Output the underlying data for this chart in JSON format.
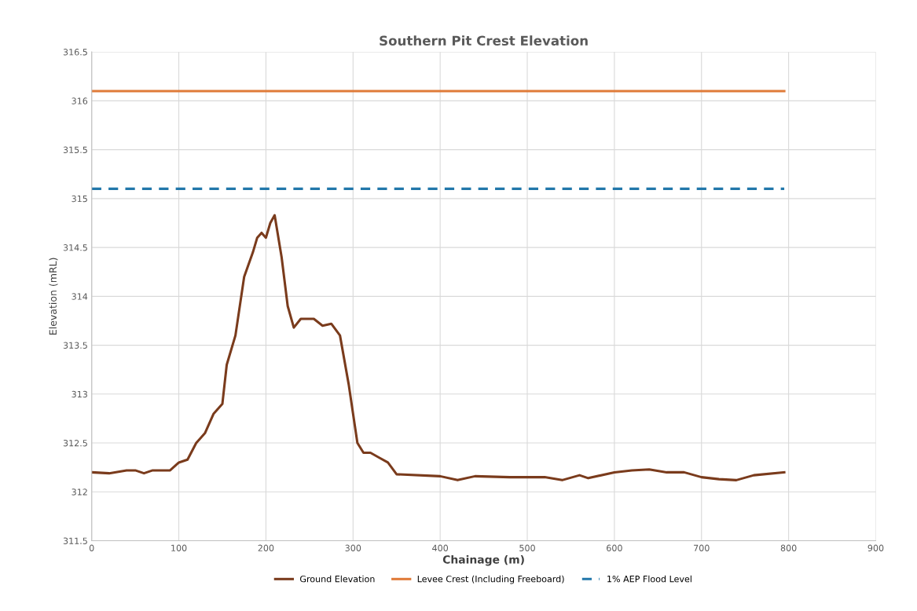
{
  "chart_data": {
    "type": "line",
    "title": "Southern Pit Crest Elevation",
    "xlabel": "Chainage (m)",
    "ylabel": "Elevation (mRL)",
    "xlim": [
      0,
      900
    ],
    "xticks": [
      0,
      100,
      200,
      300,
      400,
      500,
      600,
      700,
      800,
      900
    ],
    "ylim": [
      311.5,
      316.5
    ],
    "yticks": [
      311.5,
      312,
      312.5,
      313,
      313.5,
      314,
      314.5,
      315,
      315.5,
      316,
      316.5
    ],
    "grid": true,
    "legend": "bottom",
    "marker": "none",
    "series": [
      {
        "name": "Ground Elevation",
        "color": "#7a3b1c",
        "line_style": "solid",
        "x": [
          0,
          20,
          40,
          50,
          60,
          70,
          90,
          100,
          110,
          120,
          130,
          140,
          150,
          155,
          165,
          175,
          185,
          190,
          195,
          200,
          205,
          210,
          218,
          225,
          232,
          240,
          255,
          265,
          275,
          285,
          295,
          305,
          312,
          320,
          330,
          340,
          350,
          400,
          420,
          440,
          480,
          520,
          540,
          560,
          570,
          600,
          620,
          640,
          660,
          680,
          700,
          720,
          740,
          760,
          795
        ],
        "values": [
          312.2,
          312.19,
          312.22,
          312.22,
          312.19,
          312.22,
          312.22,
          312.3,
          312.33,
          312.5,
          312.6,
          312.8,
          312.9,
          313.3,
          313.6,
          314.2,
          314.45,
          314.6,
          314.65,
          314.6,
          314.75,
          314.83,
          314.4,
          313.9,
          313.68,
          313.77,
          313.77,
          313.7,
          313.72,
          313.6,
          313.1,
          312.5,
          312.4,
          312.4,
          312.35,
          312.3,
          312.18,
          312.16,
          312.12,
          312.16,
          312.15,
          312.15,
          312.12,
          312.17,
          312.14,
          312.2,
          312.22,
          312.23,
          312.2,
          312.2,
          312.15,
          312.13,
          312.12,
          312.17,
          312.2
        ]
      },
      {
        "name": "Levee Crest (Including Freeboard)",
        "color": "#e07b39",
        "line_style": "solid",
        "x": [
          0,
          795
        ],
        "values": [
          316.1,
          316.1
        ]
      },
      {
        "name": "1% AEP Flood Level",
        "color": "#2277aa",
        "line_style": "dashed",
        "x": [
          0,
          795
        ],
        "values": [
          315.1,
          315.1
        ]
      }
    ]
  }
}
